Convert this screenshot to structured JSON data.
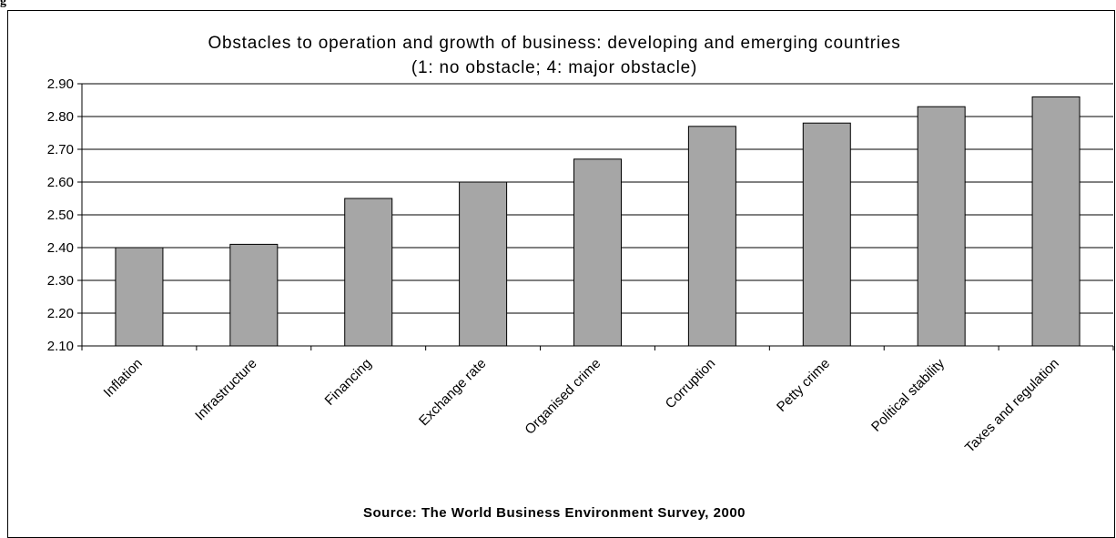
{
  "figure_label": "g",
  "chart_data": {
    "type": "bar",
    "title": "Obstacles to operation and growth of business: developing and emerging countries",
    "subtitle": "(1: no obstacle; 4: major obstacle)",
    "xlabel": "",
    "ylabel": "",
    "source": "Source: The World Business Environment Survey, 2000",
    "categories": [
      "Inflation",
      "Infrastructure",
      "Financing",
      "Exchange rate",
      "Organised crime",
      "Corruption",
      "Petty crime",
      "Political stability",
      "Taxes and regulation"
    ],
    "values": [
      2.4,
      2.41,
      2.55,
      2.6,
      2.67,
      2.77,
      2.78,
      2.83,
      2.86
    ],
    "ylim": [
      2.1,
      2.9
    ],
    "yticks": [
      "2.10",
      "2.20",
      "2.30",
      "2.40",
      "2.50",
      "2.60",
      "2.70",
      "2.80",
      "2.90"
    ],
    "grid": true,
    "legend": "none",
    "bar_color": "#a6a6a6"
  }
}
